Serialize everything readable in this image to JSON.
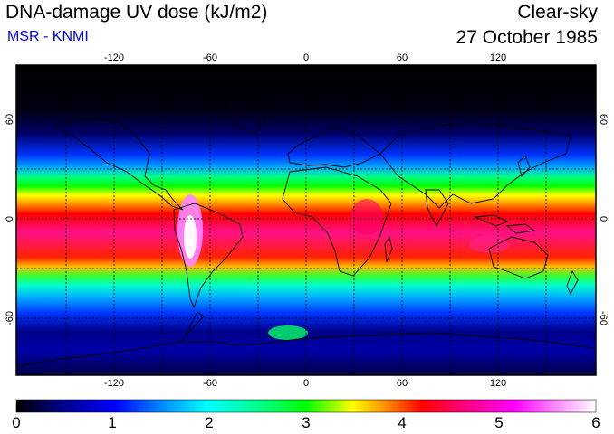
{
  "header": {
    "title": "DNA-damage UV dose (kJ/m2)",
    "subtitle": "MSR - KNMI",
    "condition": "Clear-sky",
    "date": "27 October 1985"
  },
  "map": {
    "lon_ticks": [
      "-120",
      "-60",
      "0",
      "60",
      "120"
    ],
    "lat_ticks_left": [
      "60",
      "0",
      "-60"
    ],
    "lat_ticks_right": [
      "60",
      "0",
      "-60"
    ],
    "grid": "dashed every 30 degrees",
    "projection": "equirectangular"
  },
  "colorbar": {
    "labels": [
      "0",
      "1",
      "2",
      "3",
      "4",
      "5",
      "6"
    ],
    "min": 0,
    "max": 6,
    "colors": [
      "#000000",
      "#000088",
      "#0000ff",
      "#0088ff",
      "#00ffff",
      "#00ff88",
      "#00ff00",
      "#ffff00",
      "#ff8800",
      "#ff0000",
      "#ff0088",
      "#ff00ff",
      "#ff88ff",
      "#ffffff"
    ]
  }
}
